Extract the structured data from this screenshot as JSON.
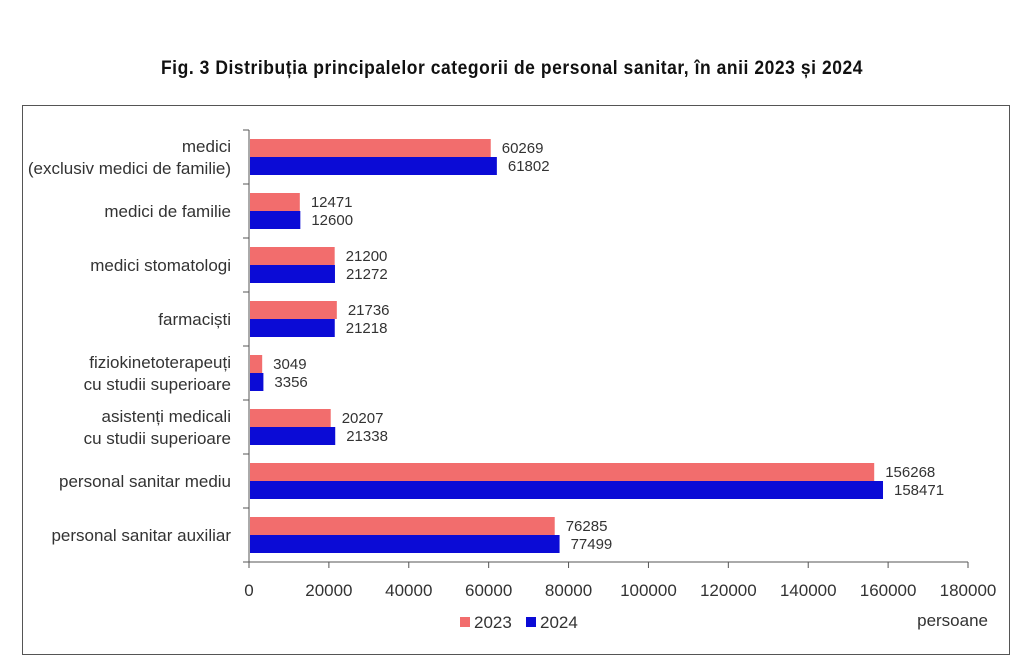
{
  "chart_data": {
    "type": "bar",
    "orientation": "horizontal",
    "title": "Fig. 3 Distribuția principalelor categorii de personal sanitar, în anii 2023 și 2024",
    "xlabel": "persoane",
    "categories": [
      [
        "medici",
        "(exclusiv medici de familie)"
      ],
      [
        "medici de familie"
      ],
      [
        "medici stomatologi"
      ],
      [
        "farmaciști"
      ],
      [
        "fiziokinetoterapeuți",
        "cu studii superioare"
      ],
      [
        "asistenți medicali",
        "cu studii superioare"
      ],
      [
        "personal sanitar mediu"
      ],
      [
        "personal sanitar auxiliar"
      ]
    ],
    "series": [
      {
        "name": "2023",
        "color": "#f26d6d",
        "values": [
          60269,
          12471,
          21200,
          21736,
          3049,
          20207,
          156268,
          76285
        ]
      },
      {
        "name": "2024",
        "color": "#0b0bd6",
        "values": [
          61802,
          12600,
          21272,
          21218,
          3356,
          21338,
          158471,
          77499
        ]
      }
    ],
    "xlim": [
      0,
      180000
    ],
    "xticks": [
      0,
      20000,
      40000,
      60000,
      80000,
      100000,
      120000,
      140000,
      160000,
      180000
    ],
    "grid": false,
    "legend_position": "bottom"
  }
}
